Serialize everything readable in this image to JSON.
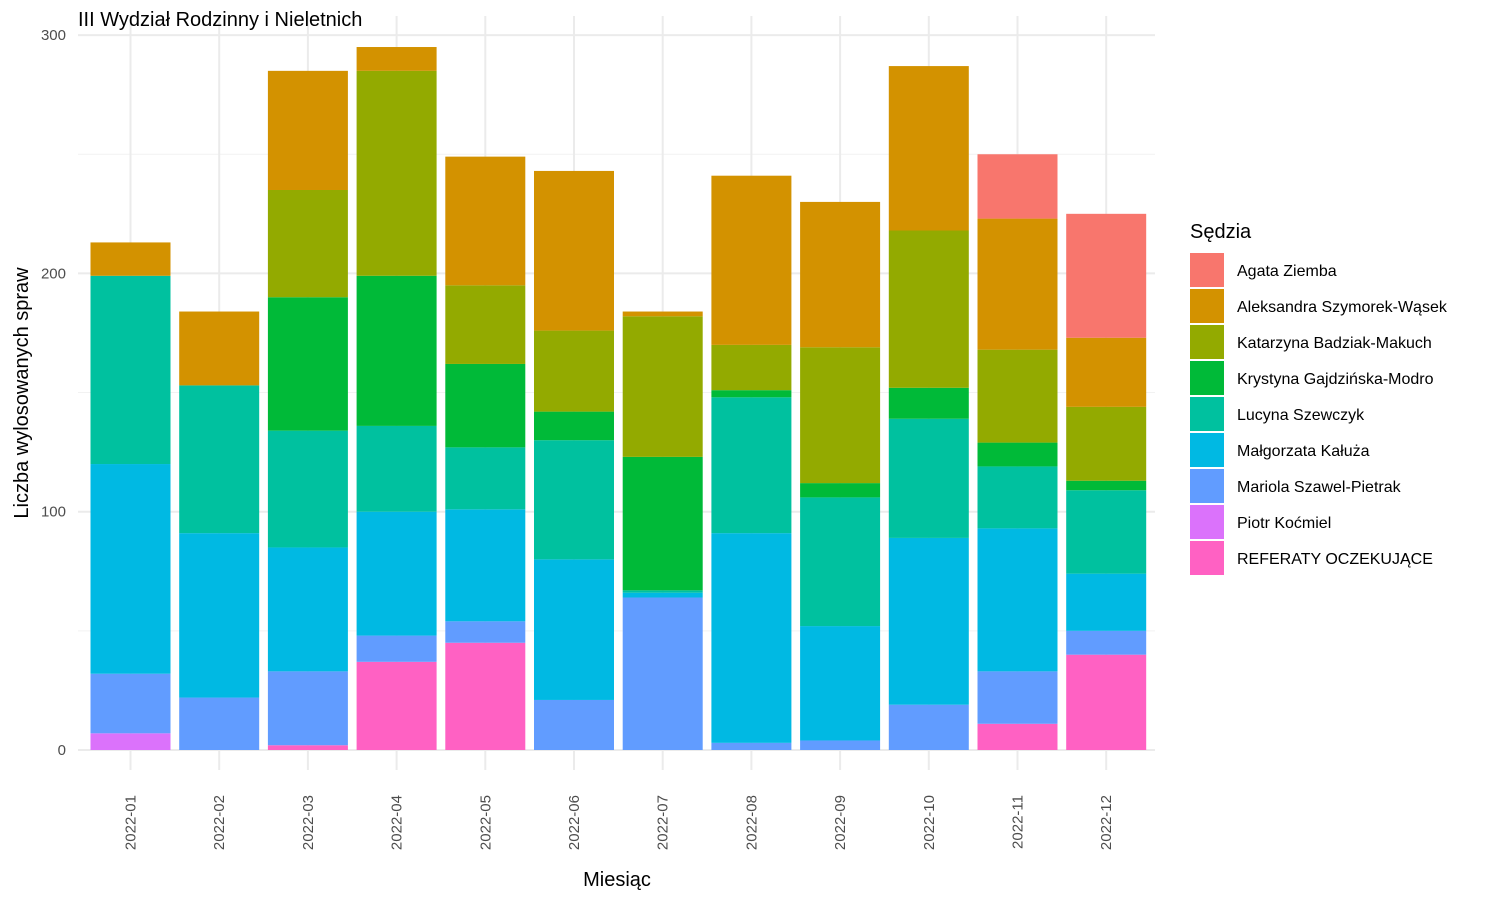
{
  "chart_data": {
    "type": "bar",
    "stacked": true,
    "title": "III Wydział Rodzinny i Nieletnich",
    "xlabel": "Miesiąc",
    "ylabel": "Liczba wylosowanych spraw",
    "ylim": [
      0,
      300
    ],
    "yticks": [
      "0",
      "100",
      "200",
      "300"
    ],
    "grid": true,
    "legend_position": "right",
    "legend_title": "Sędzia",
    "categories": [
      "2022-01",
      "2022-02",
      "2022-03",
      "2022-04",
      "2022-05",
      "2022-06",
      "2022-07",
      "2022-08",
      "2022-09",
      "2022-10",
      "2022-11",
      "2022-12"
    ],
    "series": [
      {
        "name": "Agata Ziemba",
        "color": "#F8766D",
        "values": [
          0,
          0,
          0,
          0,
          0,
          0,
          0,
          0,
          0,
          0,
          27,
          52
        ]
      },
      {
        "name": "Aleksandra Szymorek-Wąsek",
        "color": "#D39200",
        "values": [
          14,
          31,
          50,
          10,
          54,
          67,
          2,
          71,
          61,
          69,
          55,
          29
        ]
      },
      {
        "name": "Katarzyna Badziak-Makuch",
        "color": "#93AA00",
        "values": [
          0,
          0,
          45,
          86,
          33,
          34,
          59,
          19,
          57,
          66,
          39,
          31
        ]
      },
      {
        "name": "Krystyna Gajdzińska-Modro",
        "color": "#00BA38",
        "values": [
          0,
          0,
          56,
          63,
          35,
          12,
          56,
          3,
          6,
          13,
          10,
          4
        ]
      },
      {
        "name": "Lucyna Szewczyk",
        "color": "#00C19F",
        "values": [
          79,
          62,
          49,
          36,
          26,
          50,
          1,
          57,
          54,
          50,
          26,
          35
        ]
      },
      {
        "name": "Małgorzata Kałuża",
        "color": "#00B9E3",
        "values": [
          88,
          69,
          52,
          52,
          47,
          59,
          2,
          88,
          48,
          70,
          60,
          24
        ]
      },
      {
        "name": "Mariola Szawel-Pietrak",
        "color": "#619CFF",
        "values": [
          25,
          22,
          31,
          11,
          9,
          21,
          64,
          3,
          4,
          19,
          22,
          10
        ]
      },
      {
        "name": "Piotr Koćmiel",
        "color": "#DB72FB",
        "values": [
          7,
          0,
          0,
          0,
          0,
          0,
          0,
          0,
          0,
          0,
          0,
          0
        ]
      },
      {
        "name": "REFERATY OCZEKUJĄCE",
        "color": "#FF61C3",
        "values": [
          0,
          0,
          2,
          37,
          45,
          0,
          0,
          0,
          0,
          0,
          11,
          40
        ]
      }
    ]
  }
}
